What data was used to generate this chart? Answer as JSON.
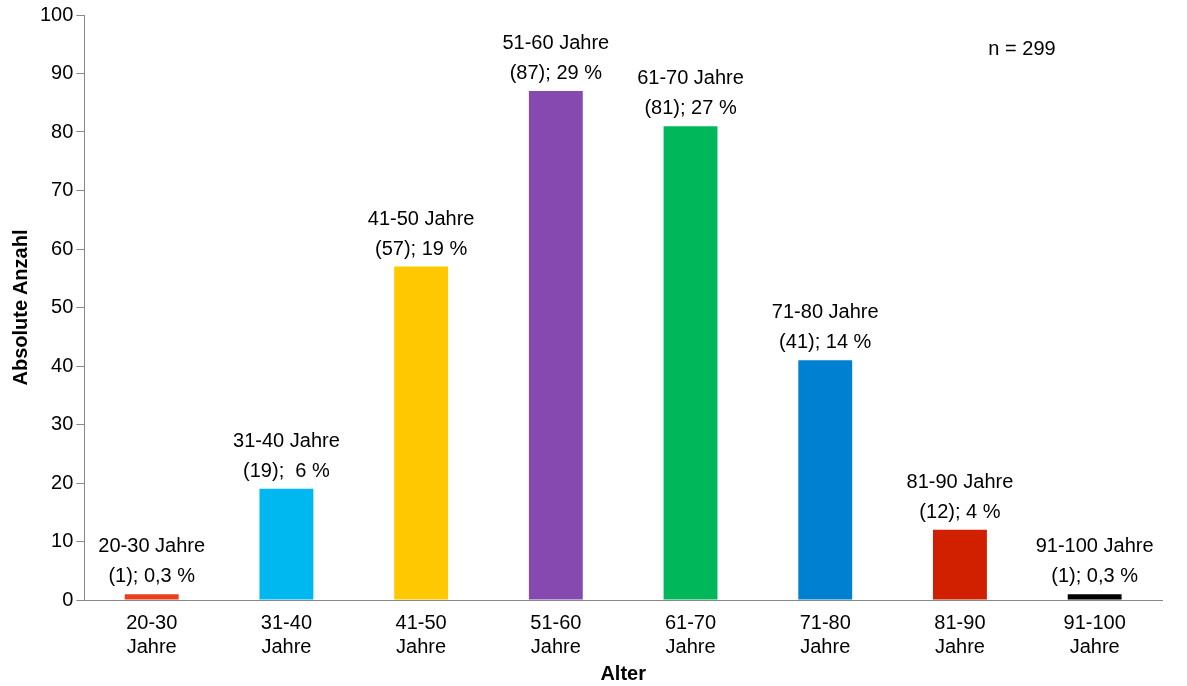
{
  "chart_data": {
    "type": "bar",
    "xlabel": "Alter",
    "ylabel": "Absolute Anzahl",
    "categories": [
      "20-30 Jahre",
      "31-40 Jahre",
      "41-50 Jahre",
      "51-60 Jahre",
      "61-70 Jahre",
      "71-80 Jahre",
      "81-90 Jahre",
      "91-100 Jahre"
    ],
    "values": [
      1,
      19,
      57,
      87,
      81,
      41,
      12,
      1
    ],
    "colors": [
      "#e8401c",
      "#00b8f0",
      "#ffc800",
      "#8649b0",
      "#00b85a",
      "#0080d0",
      "#d02000",
      "#000000"
    ],
    "value_labels": [
      "20-30 Jahre\n(1); 0,3 %",
      "31-40 Jahre\n(19);  6 %",
      "41-50 Jahre\n(57); 19 %",
      "51-60 Jahre\n(87); 29 %",
      "61-70 Jahre\n(81); 27 %",
      "71-80 Jahre\n(41); 14 %",
      "81-90 Jahre\n(12); 4 %",
      "91-100 Jahre\n(1); 0,3 %"
    ],
    "ylim": [
      0,
      100
    ],
    "yticks": [
      0,
      10,
      20,
      30,
      40,
      50,
      60,
      70,
      80,
      90,
      100
    ],
    "grid": false,
    "legend": false,
    "annotations": [
      "n = 299"
    ]
  }
}
